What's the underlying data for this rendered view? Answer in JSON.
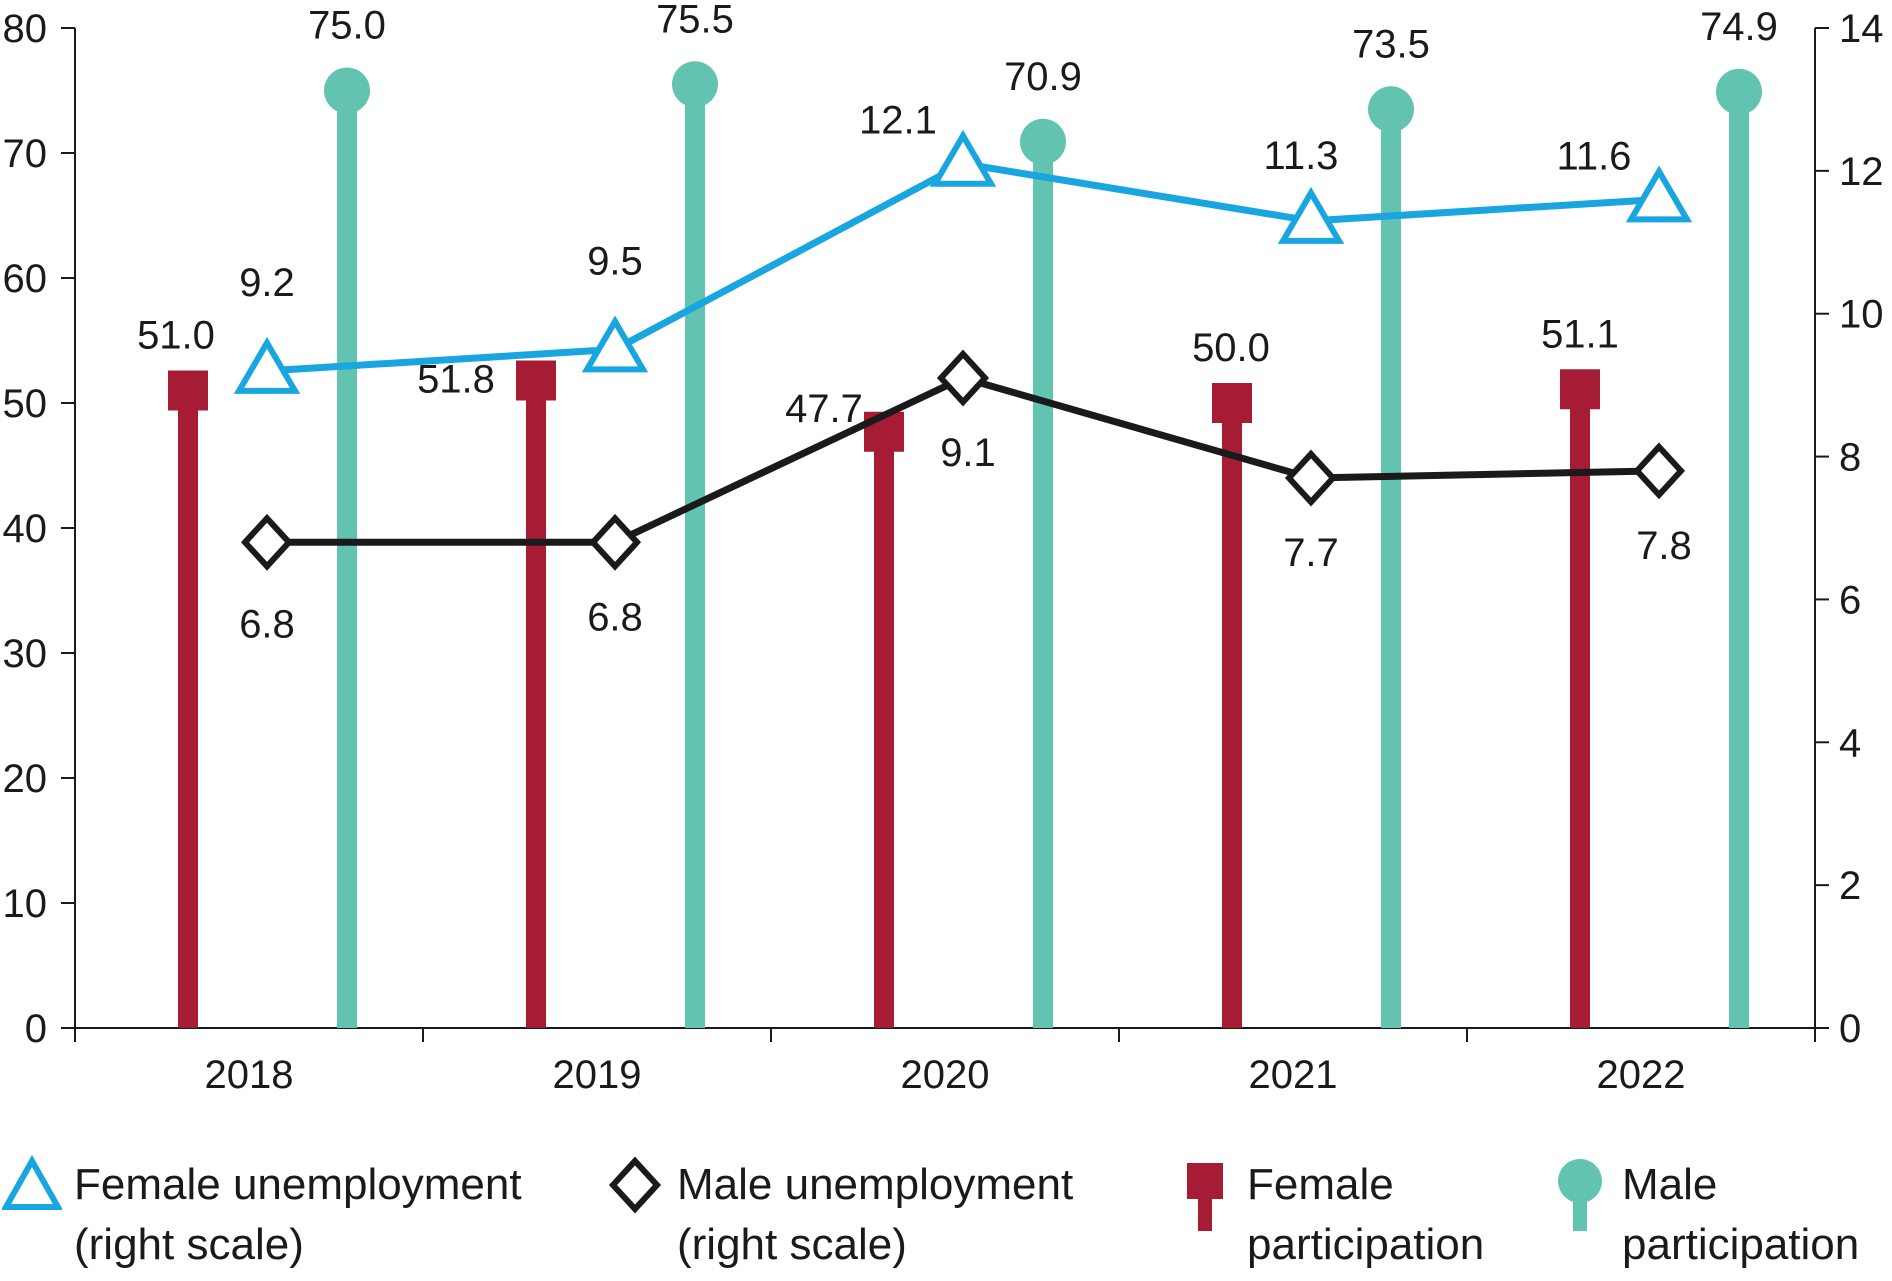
{
  "chart_data": {
    "type": "bar+line",
    "categories": [
      "2018",
      "2019",
      "2020",
      "2021",
      "2022"
    ],
    "left_axis": {
      "ylim": [
        0,
        80
      ],
      "ticks": [
        "0",
        "10",
        "20",
        "30",
        "40",
        "50",
        "60",
        "70",
        "80"
      ]
    },
    "right_axis": {
      "ylim": [
        0,
        14
      ],
      "ticks": [
        "0",
        "2",
        "4",
        "6",
        "8",
        "10",
        "12",
        "14"
      ]
    },
    "series": [
      {
        "name": "Female participation",
        "kind": "lollipop-square",
        "axis": "left",
        "color": "#a61c35",
        "values": [
          51.0,
          51.8,
          47.7,
          50.0,
          51.1
        ],
        "labels": [
          "51.0",
          "51.8",
          "47.7",
          "50.0",
          "51.1"
        ]
      },
      {
        "name": "Male participation",
        "kind": "lollipop-circle",
        "axis": "left",
        "color": "#62c4b0",
        "values": [
          75.0,
          75.5,
          70.9,
          73.5,
          74.9
        ],
        "labels": [
          "75.0",
          "75.5",
          "70.9",
          "73.5",
          "74.9"
        ]
      },
      {
        "name": "Female unemployment (right scale)",
        "kind": "line-triangle",
        "axis": "right",
        "color": "#19a6e0",
        "values": [
          9.2,
          9.5,
          12.1,
          11.3,
          11.6
        ],
        "labels": [
          "9.2",
          "9.5",
          "12.1",
          "11.3",
          "11.6"
        ]
      },
      {
        "name": "Male unemployment (right scale)",
        "kind": "line-diamond",
        "axis": "right",
        "color": "#1a1a1a",
        "values": [
          6.8,
          6.8,
          9.1,
          7.7,
          7.8
        ],
        "labels": [
          "6.8",
          "6.8",
          "9.1",
          "7.7",
          "7.8"
        ]
      }
    ]
  },
  "legend": {
    "female_unemployment": [
      "Female unemployment",
      "(right scale)"
    ],
    "male_unemployment": [
      "Male unemployment",
      "(right scale)"
    ],
    "female_participation": [
      "Female",
      "participation"
    ],
    "male_participation": [
      "Male",
      "participation"
    ]
  },
  "colors": {
    "female_participation": "#a61c35",
    "male_participation": "#62c4b0",
    "female_unemployment": "#19a6e0",
    "male_unemployment": "#1a1a1a",
    "axis": "#1a1a1a"
  }
}
